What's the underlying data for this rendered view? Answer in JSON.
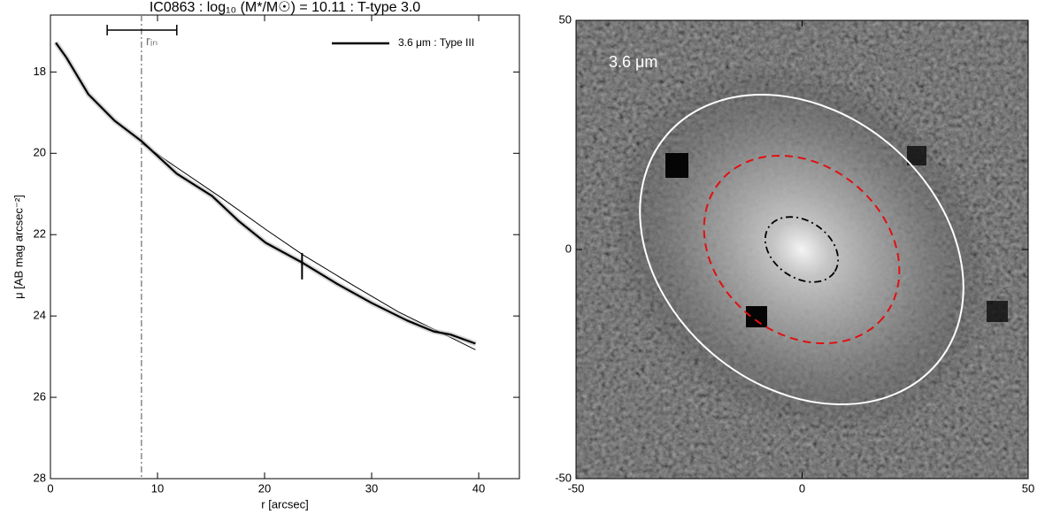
{
  "chart_data": [
    {
      "type": "line",
      "title": "IC0863 : log₁₀ (M*/M☉) = 10.11 : T-type 3.0",
      "xlabel": "r [arcsec]",
      "ylabel": "μ [AB mag arcsec⁻²]",
      "xlim": [
        0,
        43.8
      ],
      "ylim": [
        28,
        16.6
      ],
      "xticks": [
        0,
        10,
        20,
        30,
        40
      ],
      "yticks": [
        18,
        20,
        22,
        24,
        26,
        28
      ],
      "series": [
        {
          "name": "3.6 μm : Type III",
          "color": "#000000",
          "x": [
            0.5,
            1.5,
            3.55,
            6.0,
            8.5,
            11.8,
            15.1,
            17.6,
            20.1,
            23.6,
            26.7,
            30.0,
            33.3,
            35.8,
            37.4,
            39.7
          ],
          "values": [
            17.28,
            17.65,
            18.55,
            19.2,
            19.7,
            20.5,
            21.05,
            21.67,
            22.2,
            22.7,
            23.2,
            23.68,
            24.11,
            24.38,
            24.46,
            24.68
          ]
        }
      ],
      "fit": {
        "x": [
          8.5,
          11.8,
          16.0,
          20.1,
          23.6,
          28.3,
          32.5,
          39.7
        ],
        "values": [
          19.75,
          20.35,
          21.1,
          21.87,
          22.5,
          23.25,
          23.9,
          24.83
        ]
      },
      "r_in": 8.5,
      "r_in_label": "rᵢₙ",
      "r_in_range": [
        5.3,
        11.8
      ],
      "break_r": 23.5,
      "break_mu": [
        22.45,
        23.1
      ],
      "legend": "upper right"
    },
    {
      "type": "image",
      "label": "3.6 μm",
      "xlim": [
        -50,
        50
      ],
      "ylim": [
        -50,
        50
      ],
      "xticks": [
        -50,
        0,
        50
      ],
      "yticks": [
        -50,
        0,
        50
      ]
    }
  ]
}
